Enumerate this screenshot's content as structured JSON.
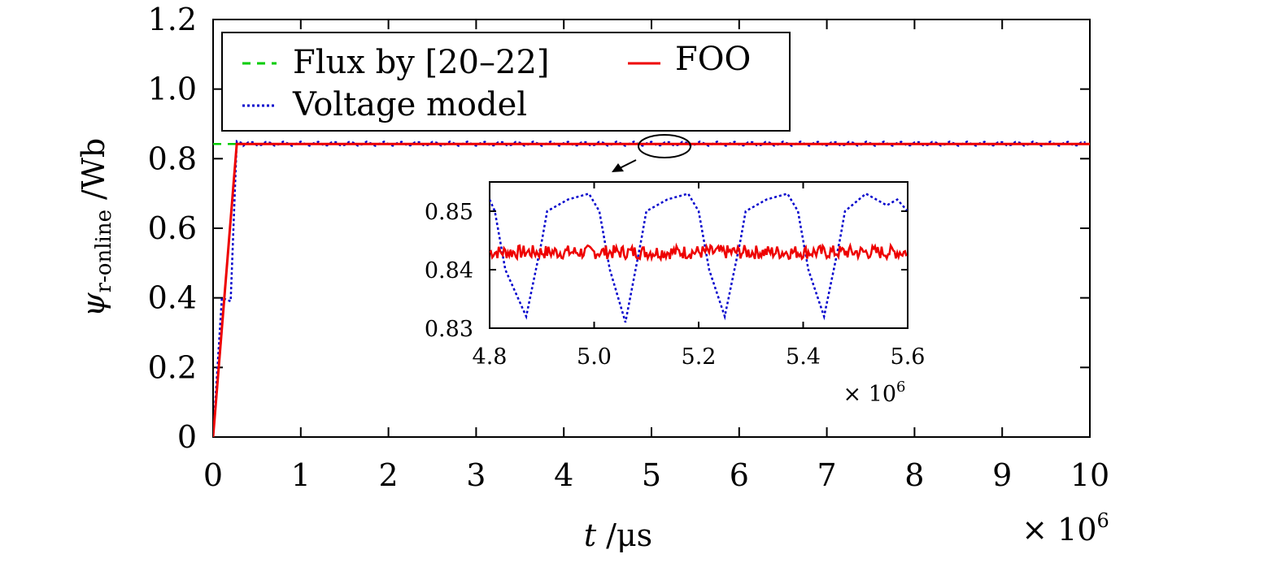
{
  "chart_data": [
    {
      "type": "line",
      "title": "",
      "xlabel_var": "t",
      "xlabel_unit": " /μs",
      "ylabel_var": "ψ",
      "ylabel_sub": "r-online",
      "ylabel_unit": " /Wb",
      "x_multiplier": "× 10",
      "x_multiplier_exp": "6",
      "xlim": [
        0,
        10
      ],
      "ylim": [
        0,
        1.2
      ],
      "x_ticks": [
        "0",
        "1",
        "2",
        "3",
        "4",
        "5",
        "6",
        "7",
        "8",
        "9",
        "10"
      ],
      "y_ticks": [
        "0",
        "0.2",
        "0.4",
        "0.6",
        "0.8",
        "1.0",
        "1.2"
      ],
      "grid": false,
      "legend_position": "top-left",
      "series": [
        {
          "name": "Flux by [20–22]",
          "color": "#00cc00",
          "style": "dashed",
          "x": [
            0,
            0.25,
            10
          ],
          "y": [
            0.842,
            0.842,
            0.842
          ]
        },
        {
          "name": "Voltage model",
          "color": "#0000cc",
          "style": "dotted",
          "x": [
            0,
            0.1,
            0.2,
            0.27,
            0.35,
            1,
            2,
            3,
            4,
            5,
            6,
            7,
            8,
            9,
            10
          ],
          "y": [
            0,
            0.4,
            0.39,
            0.85,
            0.843,
            0.843,
            0.843,
            0.843,
            0.843,
            0.843,
            0.843,
            0.843,
            0.843,
            0.843,
            0.843
          ]
        },
        {
          "name": "FOO",
          "color": "#ee0000",
          "style": "solid",
          "x": [
            0,
            0.27,
            10
          ],
          "y": [
            0,
            0.842,
            0.842
          ]
        }
      ],
      "annotation": "ellipse near x=5.1, y=0.845 with arrow to inset"
    },
    {
      "type": "line",
      "role": "inset",
      "x_multiplier": "× 10",
      "x_multiplier_exp": "6",
      "xlim": [
        4.8,
        5.6
      ],
      "ylim": [
        0.83,
        0.855
      ],
      "x_ticks": [
        "4.8",
        "5.0",
        "5.2",
        "5.4",
        "5.6"
      ],
      "y_ticks": [
        "0.83",
        "0.84",
        "0.85"
      ],
      "series": [
        {
          "name": "Voltage model",
          "color": "#0000cc",
          "style": "dotted",
          "period": 0.19,
          "x_start": 4.8,
          "x": [
            4.8,
            4.81,
            4.83,
            4.87,
            4.9,
            4.91,
            4.95,
            4.99,
            5.01,
            5.03,
            5.06,
            5.09,
            5.1,
            5.14,
            5.18,
            5.2,
            5.22,
            5.25,
            5.28,
            5.29,
            5.33,
            5.37,
            5.39,
            5.41,
            5.44,
            5.47,
            5.48,
            5.52,
            5.56,
            5.58,
            5.6
          ],
          "y": [
            0.852,
            0.85,
            0.84,
            0.832,
            0.845,
            0.85,
            0.852,
            0.853,
            0.85,
            0.84,
            0.831,
            0.845,
            0.85,
            0.852,
            0.853,
            0.85,
            0.84,
            0.832,
            0.845,
            0.85,
            0.852,
            0.853,
            0.85,
            0.84,
            0.832,
            0.845,
            0.85,
            0.853,
            0.851,
            0.852,
            0.85
          ]
        },
        {
          "name": "FOO",
          "color": "#ee0000",
          "style": "solid",
          "mean": 0.843,
          "amplitude": 0.0012
        }
      ]
    }
  ]
}
